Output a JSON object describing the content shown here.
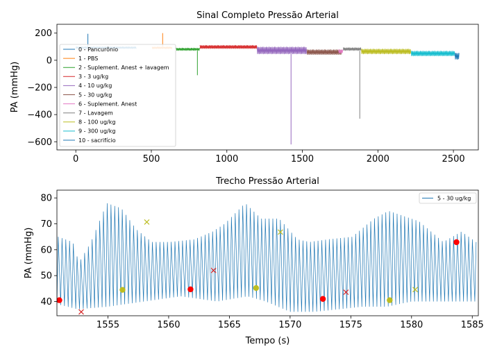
{
  "chart_data": [
    {
      "type": "line",
      "title": "Sinal Completo Pressão Arterial",
      "xlabel": "",
      "ylabel": "PA (mmHg)",
      "xlim": [
        -125,
        2665
      ],
      "ylim": [
        -660,
        265
      ],
      "xticks": [
        0,
        500,
        1000,
        1500,
        2000,
        2500
      ],
      "yticks": [
        200,
        0,
        -200,
        -400,
        -600
      ],
      "ytick_labels": [
        "200",
        "0",
        "−200",
        "−400",
        "−600"
      ],
      "legend_position": "lower-left",
      "series": [
        {
          "name": "0 - Pancurônio",
          "color": "#1f77b4",
          "x_range": [
            0,
            400
          ],
          "envelope": [
            84,
            102
          ],
          "spikes": [
            [
              80,
              195
            ]
          ]
        },
        {
          "name": "1 - PBS",
          "color": "#ff7f0e",
          "x_range": [
            505,
            640
          ],
          "envelope": [
            84,
            100
          ],
          "spikes": [
            [
              575,
              200
            ]
          ]
        },
        {
          "name": "2 - Suplement. Anest + lavagem",
          "color": "#2ca02c",
          "x_range": [
            665,
            820
          ],
          "envelope": [
            70,
            92
          ],
          "spikes": [
            [
              805,
              -110
            ]
          ]
        },
        {
          "name": "3 - 3 ug/kg",
          "color": "#d62728",
          "x_range": [
            822,
            1200
          ],
          "envelope": [
            84,
            112
          ]
        },
        {
          "name": "4 - 10 ug/kg",
          "color": "#9467bd",
          "x_range": [
            1200,
            1530
          ],
          "envelope": [
            45,
            100
          ],
          "spikes": [
            [
              1425,
              -620
            ]
          ]
        },
        {
          "name": "5 - 30 ug/kg",
          "color": "#8c564b",
          "x_range": [
            1530,
            1760
          ],
          "envelope": [
            40,
            80
          ]
        },
        {
          "name": "6 - Suplement. Anest",
          "color": "#e377c2",
          "x_range": [
            1740,
            1770
          ],
          "envelope": [
            50,
            80
          ]
        },
        {
          "name": "7 - Lavagem",
          "color": "#7f7f7f",
          "x_range": [
            1770,
            1890
          ],
          "envelope": [
            70,
            95
          ],
          "spikes": [
            [
              1880,
              -430
            ]
          ]
        },
        {
          "name": "8 - 100 ug/kg",
          "color": "#bcbd22",
          "x_range": [
            1890,
            2220
          ],
          "envelope": [
            45,
            85
          ]
        },
        {
          "name": "9 - 300 ug/kg",
          "color": "#17becf",
          "x_range": [
            2220,
            2510
          ],
          "envelope": [
            30,
            70
          ]
        },
        {
          "name": "10 - sacrifício",
          "color": "#1f77b4",
          "x_range": [
            2510,
            2540
          ],
          "envelope": [
            5,
            55
          ]
        }
      ]
    },
    {
      "type": "line",
      "title": "Trecho Pressão Arterial",
      "xlabel": "Tempo (s)",
      "ylabel": "PA (mmHg)",
      "xlim": [
        1550.8,
        1585.5
      ],
      "ylim": [
        34.5,
        83
      ],
      "xticks": [
        1555,
        1560,
        1565,
        1570,
        1575,
        1580,
        1585
      ],
      "yticks": [
        80,
        70,
        60,
        50,
        40
      ],
      "legend_position": "upper-right",
      "series": [
        {
          "name": "5 - 30 ug/kg",
          "color": "#1f77b4",
          "beat_period_s": 0.31,
          "diastolic": {
            "x": [
              1550.8,
              1552.5,
              1555,
              1558,
              1561,
              1564,
              1566.5,
              1568,
              1570,
              1572,
              1574,
              1576,
              1578,
              1580,
              1582,
              1584,
              1585.5
            ],
            "y": [
              39,
              37,
              38,
              40,
              42,
              40,
              42,
              40,
              36,
              36,
              37,
              38,
              38,
              40,
              40,
              40,
              40
            ]
          },
          "systolic": {
            "x": [
              1550.8,
              1552,
              1552.5,
              1553.5,
              1554.8,
              1556,
              1557.2,
              1558.5,
              1560,
              1562,
              1563.5,
              1564.5,
              1566.2,
              1567.5,
              1569,
              1570.5,
              1571.5,
              1573,
              1575,
              1576.8,
              1578,
              1580.5,
              1581.5,
              1582.5,
              1584,
              1585.5
            ],
            "y": [
              65,
              63,
              55,
              63,
              78,
              76,
              68,
              63,
              63,
              64,
              67,
              70,
              78,
              72,
              72,
              64,
              63,
              64,
              65,
              72,
              75,
              71,
              67,
              63,
              67,
              62
            ]
          }
        }
      ],
      "markers": [
        {
          "kind": "red-dot",
          "color": "#ff0000",
          "symbol": "o",
          "points": [
            [
              1551,
              40.5
            ],
            [
              1561.8,
              44.7
            ],
            [
              1572.7,
              41
            ],
            [
              1583.7,
              62.9
            ]
          ]
        },
        {
          "kind": "red-x",
          "color": "#d62728",
          "symbol": "x",
          "points": [
            [
              1552.8,
              36
            ],
            [
              1563.7,
              52
            ],
            [
              1574.6,
              43.6
            ]
          ]
        },
        {
          "kind": "olive-dot",
          "color": "#bcbd22",
          "symbol": "o",
          "points": [
            [
              1556.2,
              44.5
            ],
            [
              1567.2,
              45.2
            ],
            [
              1578.2,
              40.5
            ]
          ]
        },
        {
          "kind": "olive-x",
          "color": "#bcbd22",
          "symbol": "x",
          "points": [
            [
              1558.2,
              70.7
            ],
            [
              1569.2,
              66.8
            ],
            [
              1580.3,
              44.6
            ]
          ]
        }
      ]
    }
  ]
}
